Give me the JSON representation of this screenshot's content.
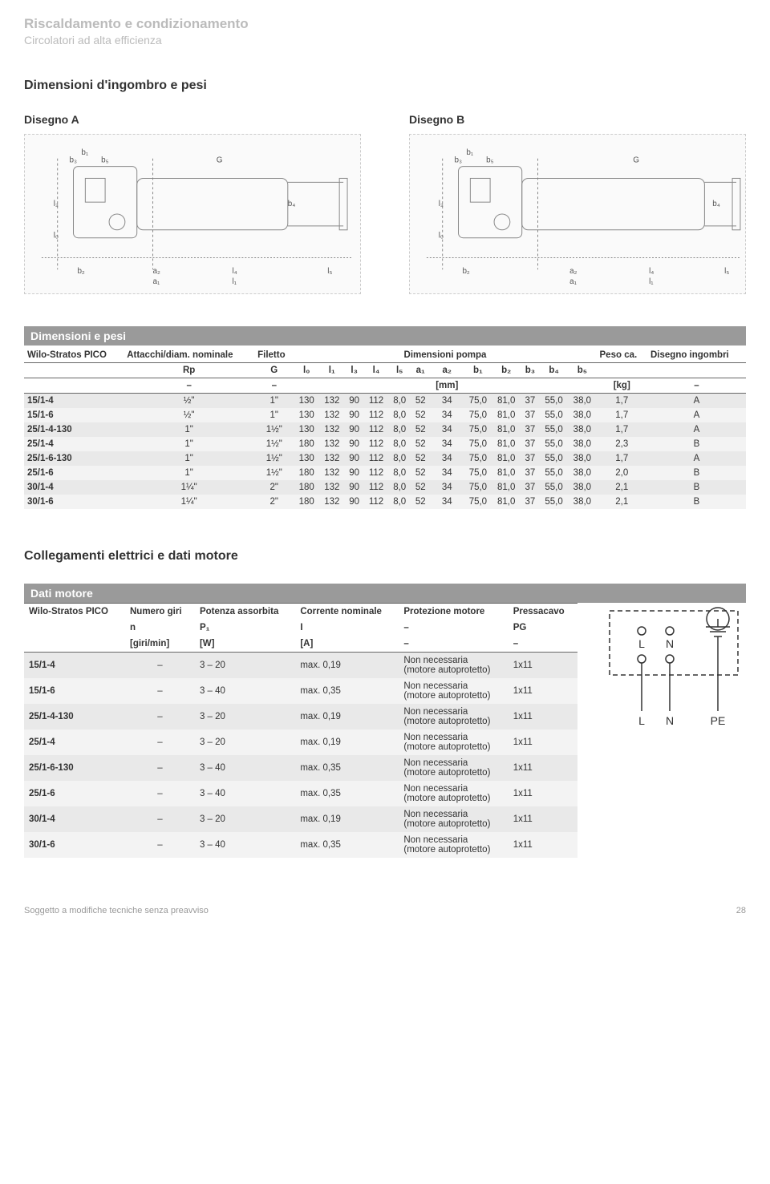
{
  "header": {
    "title": "Riscaldamento e condizionamento",
    "subtitle": "Circolatori ad alta efficienza"
  },
  "section1": {
    "title": "Dimensioni d'ingombro e pesi",
    "drawingA_label": "Disegno A",
    "drawingB_label": "Disegno B",
    "drawing_annotations": [
      "b₁",
      "b₃",
      "b₅",
      "G",
      "l₃",
      "b₄",
      "l₀",
      "b₂",
      "a₂",
      "a₁",
      "l₄",
      "l₁",
      "l₅"
    ]
  },
  "dimensions_table": {
    "title_bar": "Dimensioni e pesi",
    "series_label": "Wilo-Stratos PICO",
    "group_headers": {
      "attacchi": "Attacchi/diam. nominale",
      "filetto": "Filetto",
      "dim_pompa": "Dimensioni pompa",
      "peso": "Peso ca.",
      "disegno": "Disegno ingombri"
    },
    "col_symbols": [
      "Rp",
      "G",
      "l₀",
      "l₁",
      "l₃",
      "l₄",
      "l₅",
      "a₁",
      "a₂",
      "b₁",
      "b₂",
      "b₃",
      "b₄",
      "b₅",
      "",
      ""
    ],
    "unit_row": [
      "–",
      "–",
      "",
      "",
      "",
      "",
      "",
      "",
      "[mm]",
      "",
      "",
      "",
      "",
      "",
      "[kg]",
      "–"
    ],
    "rows": [
      {
        "model": "15/1-4",
        "Rp": "½\"",
        "G": "1\"",
        "l0": "130",
        "l1": "132",
        "l3": "90",
        "l4": "112",
        "l5": "8,0",
        "a1": "52",
        "a2": "34",
        "b1": "75,0",
        "b2": "81,0",
        "b3": "37",
        "b4": "55,0",
        "b5": "38,0",
        "kg": "1,7",
        "disegno": "A"
      },
      {
        "model": "15/1-6",
        "Rp": "½\"",
        "G": "1\"",
        "l0": "130",
        "l1": "132",
        "l3": "90",
        "l4": "112",
        "l5": "8,0",
        "a1": "52",
        "a2": "34",
        "b1": "75,0",
        "b2": "81,0",
        "b3": "37",
        "b4": "55,0",
        "b5": "38,0",
        "kg": "1,7",
        "disegno": "A"
      },
      {
        "model": "25/1-4-130",
        "Rp": "1\"",
        "G": "1½\"",
        "l0": "130",
        "l1": "132",
        "l3": "90",
        "l4": "112",
        "l5": "8,0",
        "a1": "52",
        "a2": "34",
        "b1": "75,0",
        "b2": "81,0",
        "b3": "37",
        "b4": "55,0",
        "b5": "38,0",
        "kg": "1,7",
        "disegno": "A"
      },
      {
        "model": "25/1-4",
        "Rp": "1\"",
        "G": "1½\"",
        "l0": "180",
        "l1": "132",
        "l3": "90",
        "l4": "112",
        "l5": "8,0",
        "a1": "52",
        "a2": "34",
        "b1": "75,0",
        "b2": "81,0",
        "b3": "37",
        "b4": "55,0",
        "b5": "38,0",
        "kg": "2,3",
        "disegno": "B"
      },
      {
        "model": "25/1-6-130",
        "Rp": "1\"",
        "G": "1½\"",
        "l0": "130",
        "l1": "132",
        "l3": "90",
        "l4": "112",
        "l5": "8,0",
        "a1": "52",
        "a2": "34",
        "b1": "75,0",
        "b2": "81,0",
        "b3": "37",
        "b4": "55,0",
        "b5": "38,0",
        "kg": "1,7",
        "disegno": "A"
      },
      {
        "model": "25/1-6",
        "Rp": "1\"",
        "G": "1½\"",
        "l0": "180",
        "l1": "132",
        "l3": "90",
        "l4": "112",
        "l5": "8,0",
        "a1": "52",
        "a2": "34",
        "b1": "75,0",
        "b2": "81,0",
        "b3": "37",
        "b4": "55,0",
        "b5": "38,0",
        "kg": "2,0",
        "disegno": "B"
      },
      {
        "model": "30/1-4",
        "Rp": "1¼\"",
        "G": "2\"",
        "l0": "180",
        "l1": "132",
        "l3": "90",
        "l4": "112",
        "l5": "8,0",
        "a1": "52",
        "a2": "34",
        "b1": "75,0",
        "b2": "81,0",
        "b3": "37",
        "b4": "55,0",
        "b5": "38,0",
        "kg": "2,1",
        "disegno": "B"
      },
      {
        "model": "30/1-6",
        "Rp": "1¼\"",
        "G": "2\"",
        "l0": "180",
        "l1": "132",
        "l3": "90",
        "l4": "112",
        "l5": "8,0",
        "a1": "52",
        "a2": "34",
        "b1": "75,0",
        "b2": "81,0",
        "b3": "37",
        "b4": "55,0",
        "b5": "38,0",
        "kg": "2,1",
        "disegno": "B"
      }
    ]
  },
  "section2": {
    "title": "Collegamenti elettrici e dati motore"
  },
  "motor_table": {
    "title_bar": "Dati motore",
    "series_label": "Wilo-Stratos PICO",
    "headers": {
      "numero_giri": "Numero giri",
      "potenza": "Potenza assorbita",
      "corrente": "Corrente nominale",
      "protezione": "Protezione motore",
      "pressacavo": "Pressacavo"
    },
    "symbols": {
      "n": "n",
      "P1": "P₁",
      "I": "I",
      "dash": "–",
      "PG": "PG"
    },
    "units": {
      "giri": "[giri/min]",
      "W": "[W]",
      "A": "[A]",
      "dash": "–"
    },
    "protection_text": "Non necessaria",
    "protection_sub": "(motore autoprotetto)",
    "rows": [
      {
        "model": "15/1-4",
        "n": "–",
        "P1": "3 – 20",
        "I": "max. 0,19",
        "PG": "1x11"
      },
      {
        "model": "15/1-6",
        "n": "–",
        "P1": "3 – 40",
        "I": "max. 0,35",
        "PG": "1x11"
      },
      {
        "model": "25/1-4-130",
        "n": "–",
        "P1": "3 – 20",
        "I": "max. 0,19",
        "PG": "1x11"
      },
      {
        "model": "25/1-4",
        "n": "–",
        "P1": "3 – 20",
        "I": "max. 0,19",
        "PG": "1x11"
      },
      {
        "model": "25/1-6-130",
        "n": "–",
        "P1": "3 – 40",
        "I": "max. 0,35",
        "PG": "1x11"
      },
      {
        "model": "25/1-6",
        "n": "–",
        "P1": "3 – 40",
        "I": "max. 0,35",
        "PG": "1x11"
      },
      {
        "model": "30/1-4",
        "n": "–",
        "P1": "3 – 20",
        "I": "max. 0,19",
        "PG": "1x11"
      },
      {
        "model": "30/1-6",
        "n": "–",
        "P1": "3 – 40",
        "I": "max. 0,35",
        "PG": "1x11"
      }
    ]
  },
  "wiring": {
    "L": "L",
    "N": "N",
    "PE": "PE"
  },
  "footer": {
    "left": "Soggetto a modifiche tecniche senza preavviso",
    "page": "28"
  },
  "colors": {
    "header_gray": "#bbbbbb",
    "bar_gray": "#9a9a9a",
    "row_alt1": "#e9e9e9",
    "row_alt2": "#f3f3f3",
    "line": "#666666"
  }
}
